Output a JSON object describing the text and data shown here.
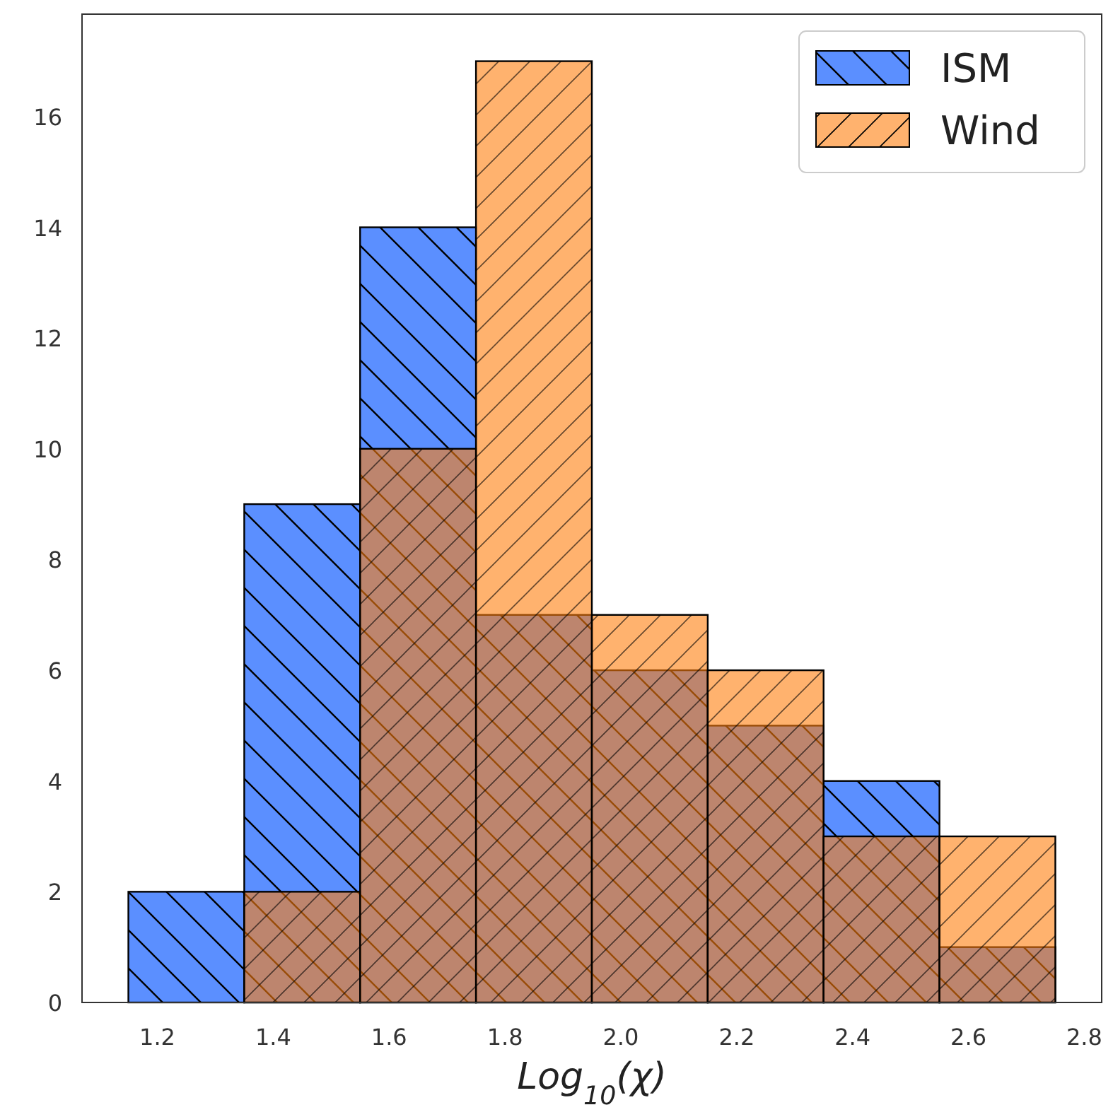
{
  "chart_data": {
    "type": "histogram",
    "xlabel": "Log$_{10}$(χ)",
    "bins": [
      1.15,
      1.35,
      1.55,
      1.75,
      1.95,
      2.15,
      2.35,
      2.55,
      2.75
    ],
    "series": [
      {
        "name": "ISM",
        "color": "#5b8fff",
        "values": [
          2,
          9,
          14,
          7,
          6,
          5,
          4,
          1
        ]
      },
      {
        "name": "Wind",
        "color": "#ff7f0e",
        "values": [
          0,
          2,
          10,
          17,
          7,
          6,
          3,
          3
        ]
      }
    ],
    "xlim": [
      1.07,
      2.83
    ],
    "ylim": [
      0,
      17.85
    ],
    "xticks": [
      1.2,
      1.4,
      1.6,
      1.8,
      {
        "value": 2,
        "label": "2.0"
      },
      2.2,
      2.4,
      2.6,
      2.8
    ],
    "yticks": [
      0,
      2,
      4,
      6,
      8,
      10,
      12,
      14,
      16
    ],
    "legend": "top right",
    "grid": false
  }
}
